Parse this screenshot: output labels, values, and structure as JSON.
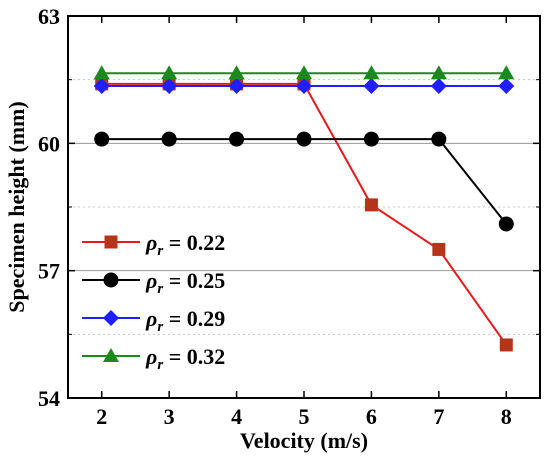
{
  "chart_data": {
    "type": "line",
    "xlabel": "Velocity (m/s)",
    "ylabel": "Specimen height (mm)",
    "xlim": [
      1.5,
      8.5
    ],
    "ylim": [
      54,
      63
    ],
    "xticks": [
      "2",
      "3",
      "4",
      "5",
      "6",
      "7",
      "8"
    ],
    "yticks": [
      "54",
      "57",
      "60",
      "63"
    ],
    "grid_major_y": [
      57,
      60
    ],
    "grid_minor_y": [
      55.5,
      58.5,
      61.5
    ],
    "legend_position": "bottom-left",
    "x": [
      2,
      3,
      4,
      5,
      6,
      7,
      8
    ],
    "series": [
      {
        "name_symbol": "ρ",
        "name_sub": "r",
        "name_value": " = 0.22",
        "color": "#e41a1c",
        "marker": "square",
        "marker_color": "#b5351a",
        "values": [
          61.4,
          61.4,
          61.4,
          61.4,
          58.55,
          57.5,
          55.25
        ]
      },
      {
        "name_symbol": "ρ",
        "name_sub": "r",
        "name_value": " = 0.25",
        "color": "#000000",
        "marker": "circle",
        "marker_color": "#000000",
        "values": [
          60.1,
          60.1,
          60.1,
          60.1,
          60.1,
          60.1,
          58.1
        ]
      },
      {
        "name_symbol": "ρ",
        "name_sub": "r",
        "name_value": " = 0.29",
        "color": "#1f1fff",
        "marker": "diamond",
        "marker_color": "#1f1fff",
        "values": [
          61.35,
          61.35,
          61.35,
          61.35,
          61.35,
          61.35,
          61.35
        ]
      },
      {
        "name_symbol": "ρ",
        "name_sub": "r",
        "name_value": " = 0.32",
        "color": "#1a8a1a",
        "marker": "triangle",
        "marker_color": "#1a8a1a",
        "values": [
          61.65,
          61.65,
          61.65,
          61.65,
          61.65,
          61.65,
          61.65
        ]
      }
    ]
  }
}
